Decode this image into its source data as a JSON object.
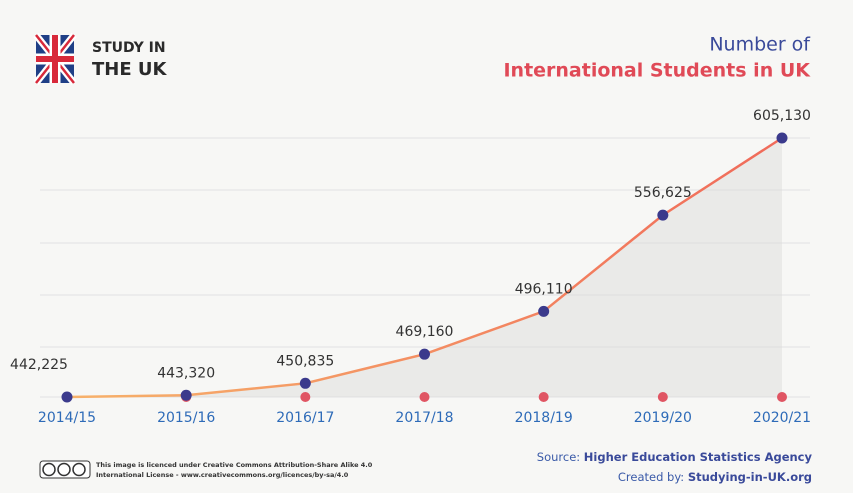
{
  "brand": {
    "line1": "STUDY IN",
    "line2": "THE UK"
  },
  "chart_data": {
    "type": "line",
    "title": "Number of",
    "subtitle": "International Students in UK",
    "categories": [
      "2014/15",
      "2015/16",
      "2016/17",
      "2017/18",
      "2018/19",
      "2019/20",
      "2020/21"
    ],
    "values": [
      442225,
      443320,
      450835,
      469160,
      496110,
      556625,
      605130
    ],
    "value_labels": [
      "442,225",
      "443,320",
      "450,835",
      "469,160",
      "496,110",
      "556,625",
      "605,130"
    ],
    "color": "#f06a5a",
    "marker_color": "#3b3a8c",
    "base_marker_color": "#e05563"
  },
  "footer": {
    "license_line1": "This image is licenced under Creative Commons Attribution-Share Alike 4.0",
    "license_line2": "International License - www.creativecommons.org/licences/by-sa/4.0",
    "source_label": "Source:",
    "source": "Higher Education Statistics Agency",
    "created_label": "Created by:",
    "created": "Studying-in-UK.org"
  }
}
